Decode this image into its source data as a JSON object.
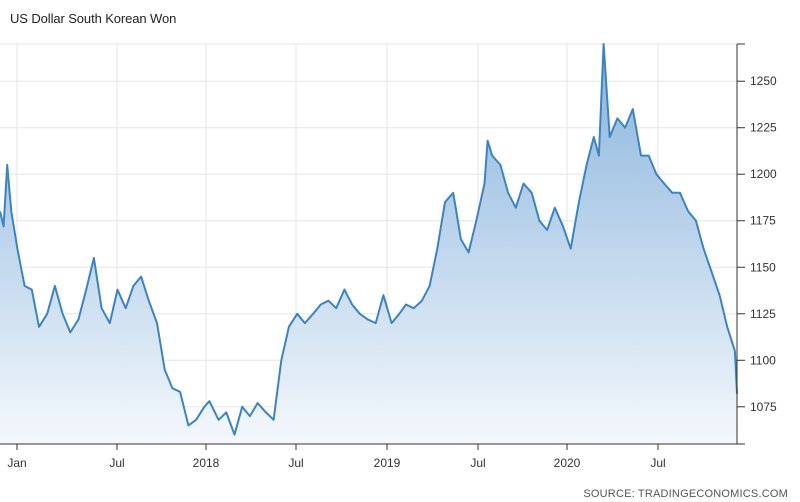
{
  "header": {
    "title": "US Dollar South Korean Won"
  },
  "footer": {
    "source": "SOURCE: TRADINGECONOMICS.COM"
  },
  "colors": {
    "line": "#3b84c4",
    "fill_top": "#88b3dc",
    "fill_bottom": "#f4f8fc",
    "grid": "#e6e6e6",
    "axis": "#333333"
  },
  "chart_data": {
    "type": "area",
    "title": "US Dollar South Korean Won",
    "xlabel": "",
    "ylabel": "",
    "x_ticks": [
      "Jan",
      "Jul",
      "2018",
      "Jul",
      "2019",
      "Jul",
      "2020",
      "Jul"
    ],
    "y_ticks": [
      1075,
      1100,
      1125,
      1150,
      1175,
      1200,
      1225,
      1250
    ],
    "ylim": [
      1055,
      1270
    ],
    "xlim": [
      "2016-12-29",
      "2020-12-04"
    ],
    "grid": true,
    "y_axis_side": "right",
    "x": [
      "2016-12-29",
      "2017-01-05",
      "2017-01-12",
      "2017-01-20",
      "2017-02-01",
      "2017-02-15",
      "2017-03-01",
      "2017-03-15",
      "2017-03-31",
      "2017-04-15",
      "2017-04-30",
      "2017-05-15",
      "2017-05-31",
      "2017-06-15",
      "2017-06-30",
      "2017-07-15",
      "2017-07-31",
      "2017-08-15",
      "2017-08-31",
      "2017-09-15",
      "2017-09-30",
      "2017-10-15",
      "2017-10-31",
      "2017-11-15",
      "2017-11-30",
      "2017-12-15",
      "2017-12-31",
      "2018-01-15",
      "2018-01-31",
      "2018-02-10",
      "2018-02-28",
      "2018-03-15",
      "2018-03-31",
      "2018-04-15",
      "2018-04-30",
      "2018-05-15",
      "2018-05-31",
      "2018-06-15",
      "2018-06-30",
      "2018-07-15",
      "2018-07-31",
      "2018-08-15",
      "2018-08-31",
      "2018-09-15",
      "2018-09-30",
      "2018-10-15",
      "2018-10-31",
      "2018-11-15",
      "2018-11-30",
      "2018-12-15",
      "2018-12-31",
      "2019-01-15",
      "2019-01-31",
      "2019-02-15",
      "2019-02-28",
      "2019-03-15",
      "2019-03-31",
      "2019-04-15",
      "2019-04-30",
      "2019-05-15",
      "2019-05-31",
      "2019-06-15",
      "2019-06-30",
      "2019-07-15",
      "2019-07-31",
      "2019-08-06",
      "2019-08-15",
      "2019-08-31",
      "2019-09-15",
      "2019-09-30",
      "2019-10-15",
      "2019-10-31",
      "2019-11-15",
      "2019-11-30",
      "2019-12-15",
      "2019-12-31",
      "2020-01-15",
      "2020-01-31",
      "2020-02-15",
      "2020-02-29",
      "2020-03-10",
      "2020-03-19",
      "2020-03-31",
      "2020-04-15",
      "2020-04-30",
      "2020-05-15",
      "2020-05-31",
      "2020-06-15",
      "2020-06-30",
      "2020-07-15",
      "2020-07-31",
      "2020-08-15",
      "2020-08-31",
      "2020-09-15",
      "2020-09-30",
      "2020-10-15",
      "2020-10-31",
      "2020-11-15",
      "2020-11-30",
      "2020-12-04"
    ],
    "series": [
      {
        "values": [
          1180,
          1172,
          1205,
          1180,
          1160,
          1140,
          1138,
          1118,
          1125,
          1140,
          1125,
          1115,
          1122,
          1138,
          1155,
          1128,
          1120,
          1138,
          1128,
          1140,
          1145,
          1132,
          1120,
          1095,
          1085,
          1083,
          1065,
          1068,
          1075,
          1078,
          1068,
          1072,
          1060,
          1075,
          1070,
          1077,
          1072,
          1068,
          1100,
          1118,
          1125,
          1120,
          1125,
          1130,
          1132,
          1128,
          1138,
          1130,
          1125,
          1122,
          1120,
          1135,
          1120,
          1125,
          1130,
          1128,
          1132,
          1140,
          1160,
          1185,
          1190,
          1165,
          1158,
          1175,
          1195,
          1218,
          1210,
          1205,
          1190,
          1182,
          1195,
          1190,
          1175,
          1170,
          1182,
          1172,
          1160,
          1185,
          1205,
          1220,
          1210,
          1270,
          1220,
          1230,
          1225,
          1235,
          1210,
          1210,
          1200,
          1195,
          1190,
          1190,
          1180,
          1175,
          1160,
          1148,
          1135,
          1118,
          1105,
          1082
        ]
      }
    ]
  }
}
